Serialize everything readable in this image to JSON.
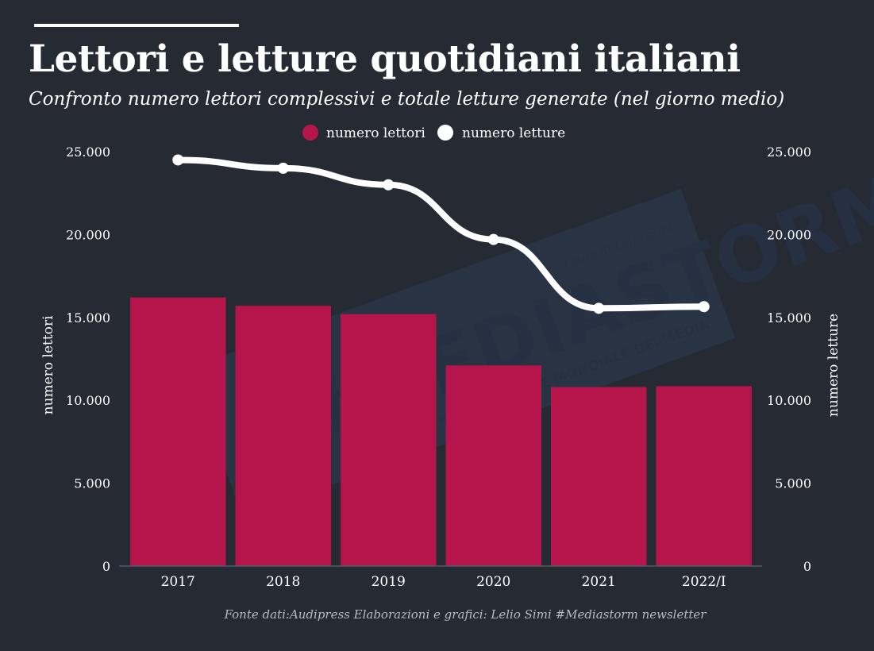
{
  "header": {
    "title": "Lettori e letture quotidiani italiani",
    "subtitle": "Confronto numero lettori complessivi e totale letture generate (nel giorno medio)"
  },
  "footer": {
    "source": "Fonte dati:Audipress Elaborazioni e grafici: Lelio Simi  #Mediastorm newsletter"
  },
  "watermark": {
    "text": "#MEDIASTORM",
    "tagline": "APPUNTI SUL NUOVO ORDINE MONDIALE DEI MEDIA",
    "credit": "a cura di Lelio Simi"
  },
  "colors": {
    "background": "#252a33",
    "bar": "#b5154a",
    "line": "#ffffff",
    "text": "#ffffff",
    "muted": "#b6bac2"
  },
  "chart_data": {
    "type": "bar",
    "categories": [
      "2017",
      "2018",
      "2019",
      "2020",
      "2021",
      "2022/I"
    ],
    "series": [
      {
        "name": "numero lettori",
        "type": "bar",
        "axis": "left",
        "values": [
          16200,
          15700,
          15200,
          12100,
          10800,
          10850
        ]
      },
      {
        "name": "numero letture",
        "type": "line",
        "axis": "right",
        "values": [
          24500,
          24000,
          23000,
          19700,
          15550,
          15650
        ]
      }
    ],
    "ylabel": "numero lettori",
    "y2label": "numero letture",
    "ylim": [
      0,
      25000
    ],
    "y2lim": [
      0,
      25000
    ],
    "yticks": [
      "0",
      "5.000",
      "10.000",
      "15.000",
      "20.000",
      "25.000"
    ],
    "y2ticks": [
      "0",
      "5.000",
      "10.000",
      "15.000",
      "20.000",
      "25.000"
    ],
    "legend_position": "top-center",
    "grid": false
  }
}
